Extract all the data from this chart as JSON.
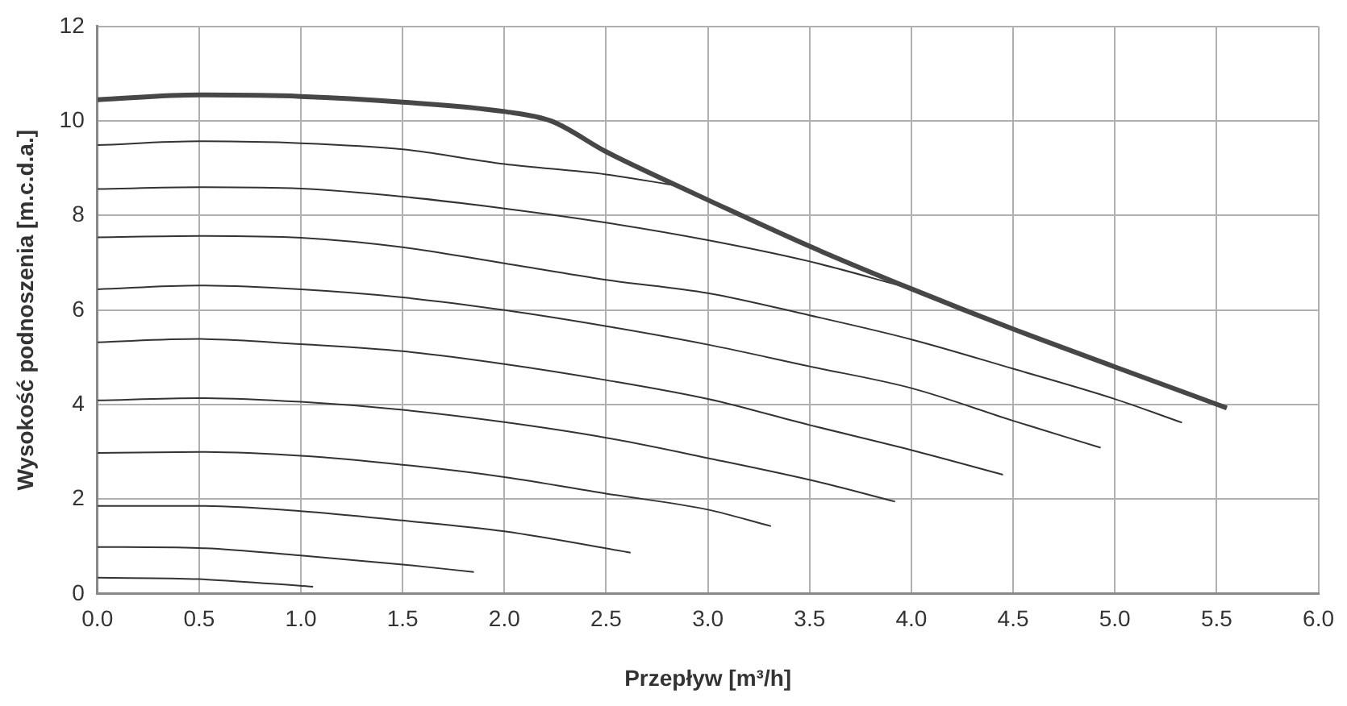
{
  "chart_data": {
    "type": "line",
    "xlabel": "Przepływ [m³/h]",
    "ylabel": "Wysokość podnoszenia [m.c.d.a.]",
    "xlim": [
      0,
      6
    ],
    "xticks": [
      {
        "value": 0,
        "label": "0.0"
      },
      {
        "value": 0.5,
        "label": "0.5"
      },
      {
        "value": 1,
        "label": "1.0"
      },
      {
        "value": 1.5,
        "label": "1.5"
      },
      {
        "value": 2,
        "label": "2.0"
      },
      {
        "value": 2.5,
        "label": "2.5"
      },
      {
        "value": 3,
        "label": "3.0"
      },
      {
        "value": 3.5,
        "label": "3.5"
      },
      {
        "value": 4,
        "label": "4.0"
      },
      {
        "value": 4.5,
        "label": "4.5"
      },
      {
        "value": 5,
        "label": "5.0"
      },
      {
        "value": 5.5,
        "label": "5.5"
      },
      {
        "value": 6,
        "label": "6.0"
      }
    ],
    "ylim": [
      0,
      12
    ],
    "yticks": [
      0,
      2,
      4,
      6,
      8,
      10,
      12
    ],
    "grid": true,
    "legend": false,
    "marker": "none",
    "line_style": "solid",
    "series": [
      {
        "color": "#474747",
        "x": [
          0,
          0.5,
          1,
          1.5,
          2,
          2.23,
          2.5,
          2.85,
          3,
          3.5,
          4,
          4.5,
          5,
          5.55
        ],
        "values": [
          10.45,
          10.55,
          10.52,
          10.4,
          10.2,
          10.0,
          9.35,
          8.63,
          8.33,
          7.35,
          6.45,
          5.6,
          4.8,
          3.93
        ]
      },
      {
        "color": "#333333",
        "x": [
          0,
          0.5,
          1,
          1.5,
          2,
          2.5,
          2.85
        ],
        "values": [
          9.49,
          9.57,
          9.53,
          9.4,
          9.09,
          8.87,
          8.63
        ]
      },
      {
        "color": "#333333",
        "x": [
          0,
          0.5,
          1,
          1.5,
          2,
          2.5,
          3,
          3.5,
          3.96
        ],
        "values": [
          8.56,
          8.6,
          8.57,
          8.4,
          8.15,
          7.85,
          7.48,
          7.03,
          6.5
        ]
      },
      {
        "color": "#333333",
        "x": [
          0,
          0.5,
          1,
          1.5,
          2,
          2.5,
          3,
          3.5,
          4,
          4.5,
          5,
          5.33
        ],
        "values": [
          7.54,
          7.57,
          7.53,
          7.33,
          6.99,
          6.64,
          6.36,
          5.89,
          5.38,
          4.76,
          4.12,
          3.62
        ]
      },
      {
        "color": "#333333",
        "x": [
          0,
          0.5,
          1,
          1.5,
          2,
          2.5,
          3,
          3.5,
          4,
          4.5,
          4.93
        ],
        "values": [
          6.44,
          6.52,
          6.44,
          6.27,
          6.0,
          5.66,
          5.27,
          4.81,
          4.35,
          3.66,
          3.09
        ]
      },
      {
        "color": "#333333",
        "x": [
          0,
          0.5,
          1,
          1.5,
          2,
          2.5,
          3,
          3.5,
          4,
          4.45
        ],
        "values": [
          5.32,
          5.39,
          5.28,
          5.13,
          4.86,
          4.52,
          4.12,
          3.57,
          3.04,
          2.52
        ]
      },
      {
        "color": "#333333",
        "x": [
          0,
          0.5,
          1,
          1.5,
          2,
          2.5,
          3,
          3.56,
          3.92
        ],
        "values": [
          4.09,
          4.14,
          4.06,
          3.89,
          3.63,
          3.3,
          2.87,
          2.35,
          1.95
        ]
      },
      {
        "color": "#333333",
        "x": [
          0,
          0.5,
          1,
          1.5,
          2,
          2.5,
          3,
          3.31
        ],
        "values": [
          2.98,
          3.0,
          2.92,
          2.73,
          2.47,
          2.12,
          1.78,
          1.43
        ]
      },
      {
        "color": "#333333",
        "x": [
          0,
          0.5,
          1,
          1.5,
          2,
          2.62
        ],
        "values": [
          1.86,
          1.86,
          1.75,
          1.55,
          1.32,
          0.87
        ]
      },
      {
        "color": "#333333",
        "x": [
          0,
          0.5,
          1,
          1.5,
          1.85
        ],
        "values": [
          0.99,
          0.97,
          0.81,
          0.62,
          0.46
        ]
      },
      {
        "color": "#333333",
        "x": [
          0,
          0.5,
          1.06
        ],
        "values": [
          0.34,
          0.31,
          0.15
        ]
      }
    ]
  }
}
